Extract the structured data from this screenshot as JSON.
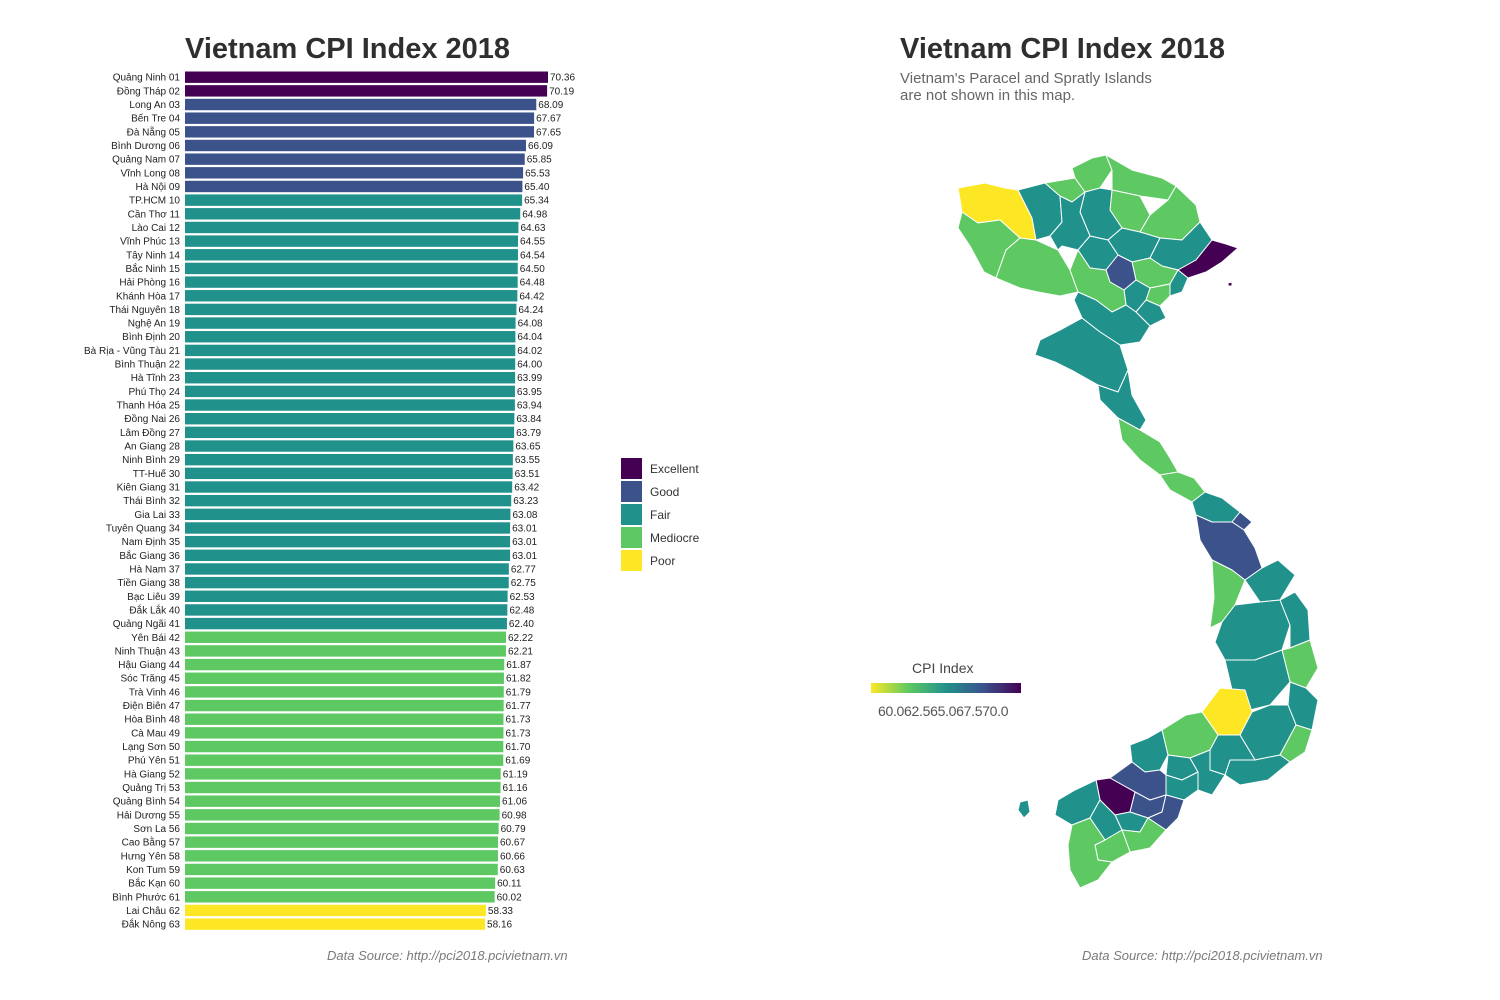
{
  "left_panel": {
    "title": "Vietnam CPI Index 2018",
    "caption": "Data Source: http://pci2018.pcivietnam.vn"
  },
  "right_panel": {
    "title": "Vietnam CPI Index 2018",
    "subtitle_line1": "Vietnam's Paracel and Spratly Islands",
    "subtitle_line2": "are not shown in this map.",
    "caption": "Data Source: http://pci2018.pcivietnam.vn",
    "legend_title": "CPI Index",
    "legend_ticks": "60.062.565.067.570.0"
  },
  "colors": {
    "Excellent": "#440154",
    "Good": "#3b528b",
    "Fair": "#21918c",
    "Mediocre": "#5ec962",
    "Poor": "#fde725"
  },
  "chart_data": [
    {
      "type": "bar",
      "orientation": "horizontal",
      "title": "Vietnam CPI Index 2018",
      "legend": [
        "Excellent",
        "Good",
        "Fair",
        "Mediocre",
        "Poor"
      ],
      "legend_position": "right",
      "grid": false,
      "categories": [
        "Quảng Ninh 01",
        "Đồng Tháp 02",
        "Long An 03",
        "Bến Tre 04",
        "Đà Nẵng 05",
        "Bình Dương 06",
        "Quảng Nam 07",
        "Vĩnh Long 08",
        "Hà Nội 09",
        "TP.HCM 10",
        "Cần Thơ 11",
        "Lào Cai 12",
        "Vĩnh Phúc 13",
        "Tây Ninh 14",
        "Bắc Ninh 15",
        "Hải Phòng 16",
        "Khánh Hòa 17",
        "Thái Nguyên 18",
        "Nghệ An 19",
        "Bình Định 20",
        "Bà Rịa - Vũng Tàu 21",
        "Bình Thuận 22",
        "Hà Tĩnh 23",
        "Phú Thọ 24",
        "Thanh Hóa 25",
        "Đồng Nai 26",
        "Lâm Đồng 27",
        "An Giang 28",
        "Ninh Bình 29",
        "TT-Huế 30",
        "Kiên Giang 31",
        "Thái Bình 32",
        "Gia Lai 33",
        "Tuyên Quang 34",
        "Nam Định 35",
        "Bắc Giang 36",
        "Hà Nam 37",
        "Tiền Giang 38",
        "Bạc Liêu 39",
        "Đắk Lắk 40",
        "Quảng Ngãi 41",
        "Yên Bái 42",
        "Ninh Thuận 43",
        "Hậu Giang 44",
        "Sóc Trăng 45",
        "Trà Vinh 46",
        "Điện Biên 47",
        "Hòa Bình 48",
        "Cà Mau 49",
        "Lạng Sơn 50",
        "Phú Yên 51",
        "Hà Giang 52",
        "Quảng Trị 53",
        "Quảng Bình 54",
        "Hải Dương 55",
        "Sơn La 56",
        "Cao Bằng 57",
        "Hưng Yên 58",
        "Kon Tum 59",
        "Bắc Kạn 60",
        "Bình Phước 61",
        "Lai Châu 62",
        "Đắk Nông 63"
      ],
      "value_labels": [
        "70.36",
        "70.19",
        "68.09",
        "67.67",
        "67.65",
        "66.09",
        "65.85",
        "65.53",
        "65.40",
        "65.34",
        "64.98",
        "64.63",
        "64.55",
        "64.54",
        "64.50",
        "64.48",
        "64.42",
        "64.24",
        "64.08",
        "64.04",
        "64.02",
        "64.00",
        "63.99",
        "63.95",
        "63.94",
        "63.84",
        "63.79",
        "63.65",
        "63.55",
        "63.51",
        "63.42",
        "63.23",
        "63.08",
        "63.01",
        "63.01",
        "63.01",
        "62.77",
        "62.75",
        "62.53",
        "62.48",
        "62.40",
        "62.22",
        "62.21",
        "61.87",
        "61.82",
        "61.79",
        "61.77",
        "61.73",
        "61.73",
        "61.70",
        "61.69",
        "61.19",
        "61.16",
        "61.06",
        "60.98",
        "60.79",
        "60.67",
        "60.66",
        "60.63",
        "60.11",
        "60.02",
        "58.33",
        "58.16"
      ],
      "values": [
        70.36,
        70.19,
        68.09,
        67.67,
        67.65,
        66.09,
        65.85,
        65.53,
        65.4,
        65.34,
        64.98,
        64.63,
        64.55,
        64.54,
        64.5,
        64.48,
        64.42,
        64.24,
        64.08,
        64.04,
        64.02,
        64.0,
        63.99,
        63.95,
        63.94,
        63.84,
        63.79,
        63.65,
        63.55,
        63.51,
        63.42,
        63.23,
        63.08,
        63.01,
        63.01,
        63.01,
        62.77,
        62.75,
        62.53,
        62.48,
        62.4,
        62.22,
        62.21,
        61.87,
        61.82,
        61.79,
        61.77,
        61.73,
        61.73,
        61.7,
        61.69,
        61.19,
        61.16,
        61.06,
        60.98,
        60.79,
        60.67,
        60.66,
        60.63,
        60.11,
        60.02,
        58.33,
        58.16
      ],
      "groups": [
        "Excellent",
        "Excellent",
        "Good",
        "Good",
        "Good",
        "Good",
        "Good",
        "Good",
        "Good",
        "Fair",
        "Fair",
        "Fair",
        "Fair",
        "Fair",
        "Fair",
        "Fair",
        "Fair",
        "Fair",
        "Fair",
        "Fair",
        "Fair",
        "Fair",
        "Fair",
        "Fair",
        "Fair",
        "Fair",
        "Fair",
        "Fair",
        "Fair",
        "Fair",
        "Fair",
        "Fair",
        "Fair",
        "Fair",
        "Fair",
        "Fair",
        "Fair",
        "Fair",
        "Fair",
        "Fair",
        "Fair",
        "Mediocre",
        "Mediocre",
        "Mediocre",
        "Mediocre",
        "Mediocre",
        "Mediocre",
        "Mediocre",
        "Mediocre",
        "Mediocre",
        "Mediocre",
        "Mediocre",
        "Mediocre",
        "Mediocre",
        "Mediocre",
        "Mediocre",
        "Mediocre",
        "Mediocre",
        "Mediocre",
        "Mediocre",
        "Mediocre",
        "Poor",
        "Poor"
      ]
    },
    {
      "type": "choropleth",
      "title": "Vietnam CPI Index 2018",
      "color_scale": "viridis (reversed)",
      "legend_title": "CPI Index",
      "legend_range": [
        58.16,
        70.36
      ]
    }
  ]
}
